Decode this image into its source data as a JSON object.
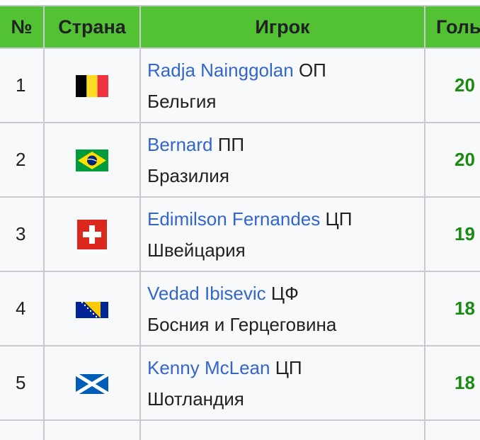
{
  "table": {
    "headers": {
      "num": "№",
      "country": "Страна",
      "player": "Игрок",
      "goals": "Голы"
    },
    "rows": [
      {
        "num": "1",
        "flag": "belgium-flag",
        "player": "Radja Nainggolan",
        "position": "ОП",
        "country": "Бельгия",
        "goals": "20"
      },
      {
        "num": "2",
        "flag": "brazil-flag",
        "player": "Bernard",
        "position": "ПП",
        "country": "Бразилия",
        "goals": "20"
      },
      {
        "num": "3",
        "flag": "switzerland-flag",
        "player": "Edimilson Fernandes",
        "position": "ЦП",
        "country": "Швейцария",
        "goals": "19"
      },
      {
        "num": "4",
        "flag": "bosnia-flag",
        "player": "Vedad Ibisevic",
        "position": "ЦФ",
        "country": "Босния и Герцеговина",
        "goals": "18"
      },
      {
        "num": "5",
        "flag": "scotland-flag",
        "player": "Kenny McLean",
        "position": "ЦП",
        "country": "Шотландия",
        "goals": "18"
      }
    ]
  },
  "colors": {
    "header_bg": "#52c234",
    "link": "#3366cc",
    "goals": "#1a8a12",
    "row_bg": "#f8f9fa",
    "border": "#c8ccd1"
  }
}
